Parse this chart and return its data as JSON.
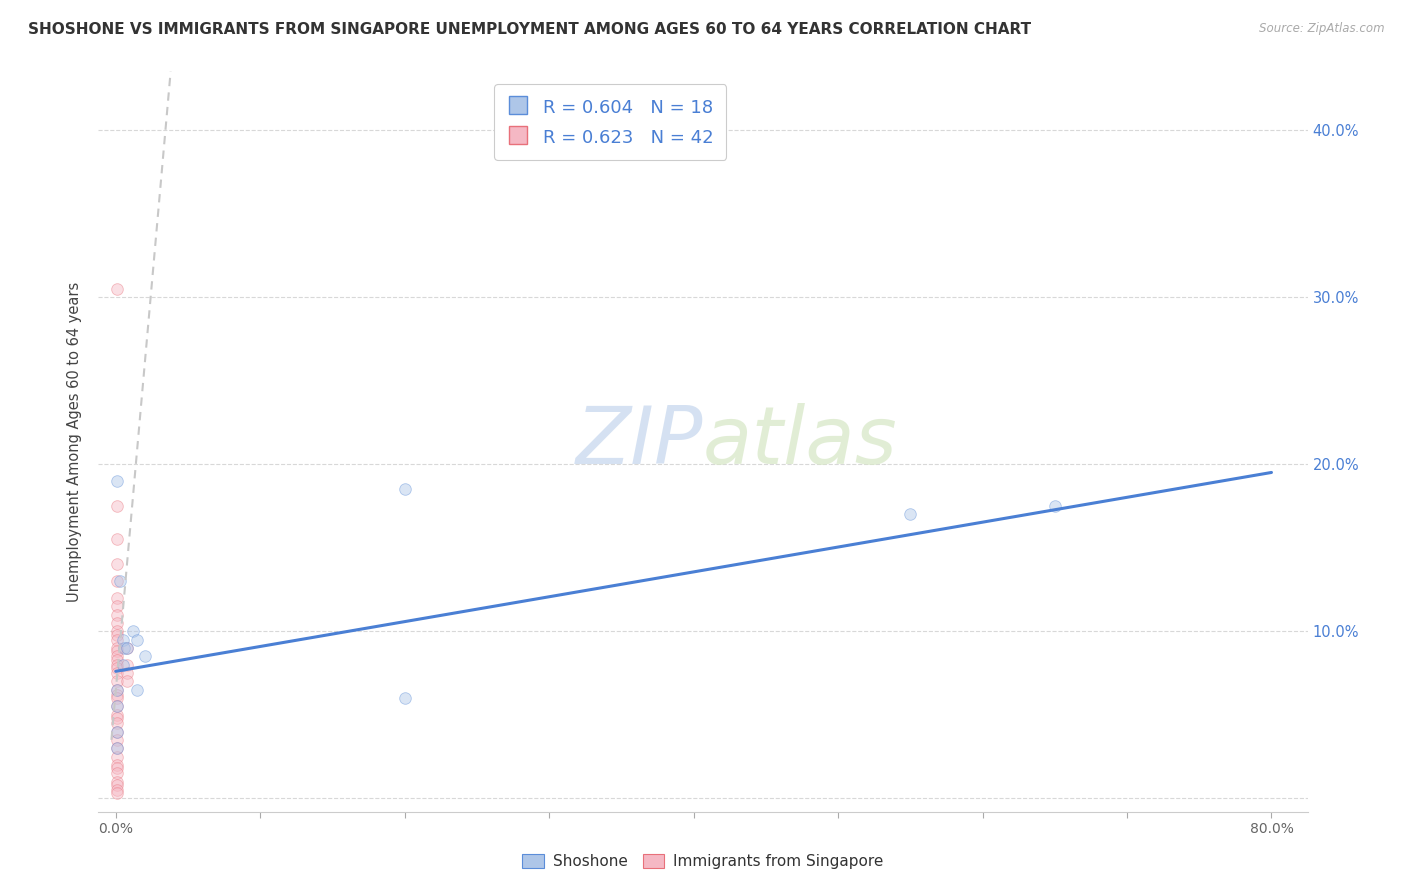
{
  "title": "SHOSHONE VS IMMIGRANTS FROM SINGAPORE UNEMPLOYMENT AMONG AGES 60 TO 64 YEARS CORRELATION CHART",
  "source": "Source: ZipAtlas.com",
  "ylabel": "Unemployment Among Ages 60 to 64 years",
  "watermark_zip": "ZIP",
  "watermark_atlas": "atlas",
  "blue_R": 0.604,
  "blue_N": 18,
  "pink_R": 0.623,
  "pink_N": 42,
  "blue_fill": "#aec6e8",
  "pink_fill": "#f5b8c4",
  "blue_edge": "#5b8dd9",
  "pink_edge": "#e8707a",
  "blue_line_color": "#4a7fd4",
  "pink_line_color": "#c8c8c8",
  "blue_scatter": [
    [
      0.001,
      0.19
    ],
    [
      0.003,
      0.13
    ],
    [
      0.005,
      0.095
    ],
    [
      0.005,
      0.08
    ],
    [
      0.006,
      0.09
    ],
    [
      0.008,
      0.09
    ],
    [
      0.012,
      0.1
    ],
    [
      0.015,
      0.095
    ],
    [
      0.015,
      0.065
    ],
    [
      0.02,
      0.085
    ],
    [
      0.001,
      0.065
    ],
    [
      0.001,
      0.04
    ],
    [
      0.001,
      0.03
    ],
    [
      0.2,
      0.06
    ],
    [
      0.2,
      0.185
    ],
    [
      0.55,
      0.17
    ],
    [
      0.65,
      0.175
    ],
    [
      0.001,
      0.055
    ]
  ],
  "pink_scatter": [
    [
      0.001,
      0.305
    ],
    [
      0.001,
      0.175
    ],
    [
      0.001,
      0.155
    ],
    [
      0.001,
      0.14
    ],
    [
      0.001,
      0.13
    ],
    [
      0.001,
      0.12
    ],
    [
      0.001,
      0.115
    ],
    [
      0.001,
      0.11
    ],
    [
      0.001,
      0.105
    ],
    [
      0.001,
      0.1
    ],
    [
      0.001,
      0.098
    ],
    [
      0.001,
      0.095
    ],
    [
      0.001,
      0.09
    ],
    [
      0.001,
      0.088
    ],
    [
      0.001,
      0.085
    ],
    [
      0.001,
      0.083
    ],
    [
      0.001,
      0.08
    ],
    [
      0.001,
      0.078
    ],
    [
      0.001,
      0.075
    ],
    [
      0.001,
      0.07
    ],
    [
      0.001,
      0.065
    ],
    [
      0.001,
      0.062
    ],
    [
      0.001,
      0.06
    ],
    [
      0.001,
      0.055
    ],
    [
      0.001,
      0.05
    ],
    [
      0.001,
      0.048
    ],
    [
      0.001,
      0.045
    ],
    [
      0.001,
      0.04
    ],
    [
      0.001,
      0.035
    ],
    [
      0.001,
      0.03
    ],
    [
      0.001,
      0.025
    ],
    [
      0.001,
      0.02
    ],
    [
      0.001,
      0.018
    ],
    [
      0.001,
      0.015
    ],
    [
      0.001,
      0.01
    ],
    [
      0.001,
      0.008
    ],
    [
      0.001,
      0.005
    ],
    [
      0.001,
      0.003
    ],
    [
      0.008,
      0.09
    ],
    [
      0.008,
      0.08
    ],
    [
      0.008,
      0.075
    ],
    [
      0.008,
      0.07
    ]
  ],
  "xlim": [
    -0.012,
    0.825
  ],
  "ylim": [
    -0.008,
    0.435
  ],
  "yticks": [
    0.0,
    0.1,
    0.2,
    0.3,
    0.4
  ],
  "grid_color": "#d8d8d8",
  "bg_color": "#ffffff",
  "scatter_size": 70,
  "scatter_alpha": 0.45,
  "blue_trendline_x": [
    0.0,
    0.8
  ],
  "blue_trendline_y": [
    0.076,
    0.195
  ],
  "pink_trendline_x": [
    -0.003,
    0.038
  ],
  "pink_trendline_y": [
    0.035,
    0.435
  ]
}
